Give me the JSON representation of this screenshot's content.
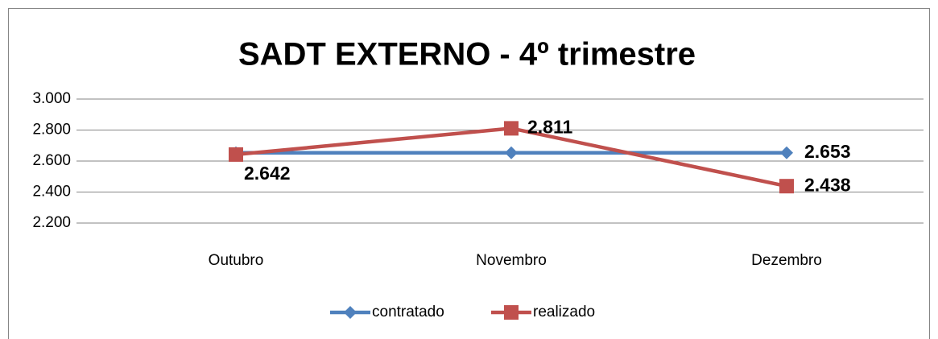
{
  "chart_data": {
    "type": "line",
    "title": "SADT EXTERNO - 4º trimestre",
    "categories": [
      "Outubro",
      "Novembro",
      "Dezembro"
    ],
    "series": [
      {
        "name": "contratado",
        "color": "#4f81bd",
        "marker": "diamond",
        "values": [
          2653,
          2653,
          2653
        ],
        "value_labels": [
          null,
          null,
          "2.653"
        ]
      },
      {
        "name": "realizado",
        "color": "#c0504d",
        "marker": "square",
        "values": [
          2642,
          2811,
          2438
        ],
        "value_labels": [
          "2.642",
          "2.811",
          "2.438"
        ]
      }
    ],
    "ylim": [
      2200,
      3000
    ],
    "yticks": [
      {
        "value": 2200,
        "label": "2.200"
      },
      {
        "value": 2400,
        "label": "2.400"
      },
      {
        "value": 2600,
        "label": "2.600"
      },
      {
        "value": 2800,
        "label": "2.800"
      },
      {
        "value": 3000,
        "label": "3.000"
      }
    ],
    "grid": true,
    "legend": "bottom"
  }
}
